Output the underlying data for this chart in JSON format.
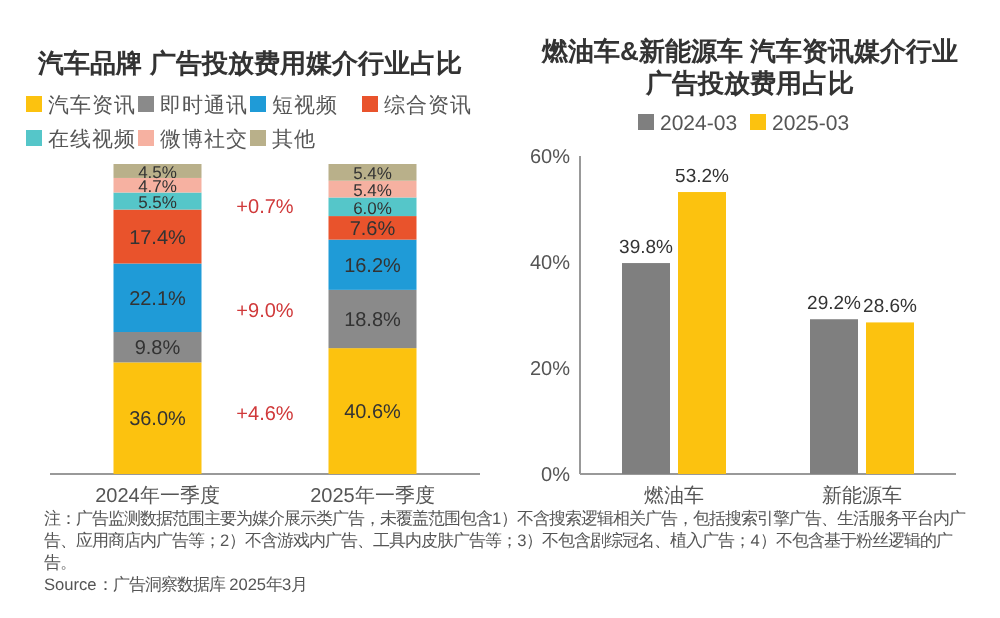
{
  "chart_data": [
    {
      "type": "bar",
      "stacked": true,
      "title": "汽车品牌 广告投放费用媒介行业占比",
      "categories": [
        "2024年一季度",
        "2025年一季度"
      ],
      "legend": "top",
      "series": [
        {
          "name": "汽车资讯",
          "color": "#fcc20f",
          "values": [
            36.0,
            40.6
          ],
          "value_labels": [
            "36.0%",
            "40.6%"
          ]
        },
        {
          "name": "即时通讯",
          "color": "#8a8a8a",
          "values": [
            9.8,
            18.8
          ],
          "value_labels": [
            "9.8%",
            "18.8%"
          ]
        },
        {
          "name": "短视频",
          "color": "#1f9bd7",
          "values": [
            22.1,
            16.2
          ],
          "value_labels": [
            "22.1%",
            "16.2%"
          ]
        },
        {
          "name": "综合资讯",
          "color": "#e9532c",
          "values": [
            17.4,
            7.6
          ],
          "value_labels": [
            "17.4%",
            "7.6%"
          ]
        },
        {
          "name": "在线视频",
          "color": "#55c6c9",
          "values": [
            5.5,
            6.0
          ],
          "value_labels": [
            "5.5%",
            "6.0%"
          ]
        },
        {
          "name": "微博社交",
          "color": "#f6b1a1",
          "values": [
            4.7,
            5.4
          ],
          "value_labels": [
            "4.7%",
            "5.4%"
          ]
        },
        {
          "name": "其他",
          "color": "#b9b08a",
          "values": [
            4.5,
            5.4
          ],
          "value_labels": [
            "4.5%",
            "5.4%"
          ]
        }
      ],
      "annotations": [
        "+0.7%",
        "+9.0%",
        "+4.6%",
        "注：广告监测数据范围主要为媒介展示类广告，未覆盖范围包含1）不含搜索逻辑相关广告，包括搜索引擎广告、生活服务平台内广告、应用商店内广告等；2）不含游戏内广告、工具内皮肤广告等；3）不包含剧综冠名、植入广告；4）不包含基于粉丝逻辑的广告。",
        "Source：广告洞察数据库 2025年3月"
      ]
    },
    {
      "type": "bar",
      "title": "燃油车&新能源车 汽车资讯媒介行业广告投放费用占比",
      "categories": [
        "燃油车",
        "新能源车"
      ],
      "legend": "top",
      "ylim": [
        0,
        60
      ],
      "yticks": [
        {
          "value": 0,
          "label": "0%"
        },
        {
          "value": 20,
          "label": "20%"
        },
        {
          "value": 40,
          "label": "40%"
        },
        {
          "value": 60,
          "label": "60%"
        }
      ],
      "series": [
        {
          "name": "2024-03",
          "color": "#7f7f7f",
          "values": [
            39.8,
            29.2
          ],
          "value_labels": [
            "39.8%",
            "29.2%"
          ]
        },
        {
          "name": "2025-03",
          "color": "#fcc20f",
          "values": [
            53.2,
            28.6
          ],
          "value_labels": [
            "53.2%",
            "28.6%"
          ]
        }
      ]
    }
  ]
}
